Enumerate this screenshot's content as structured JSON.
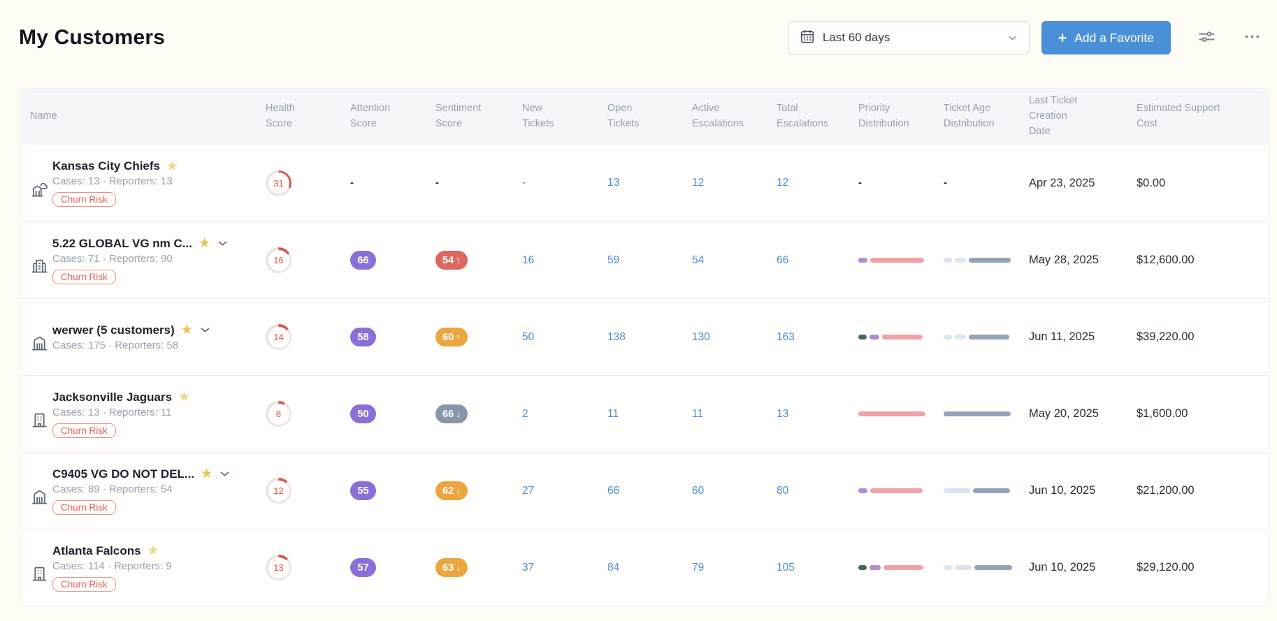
{
  "page": {
    "title": "My Customers"
  },
  "toolbar": {
    "date_filter": {
      "value": "Last 60 days",
      "icon": "calendar-icon"
    },
    "add_favorite": {
      "plus": "+",
      "label": "Add a Favorite"
    },
    "settings_icon": "sliders-icon",
    "more_icon": "ellipsis-icon"
  },
  "colors": {
    "accent_blue": "#4a90d9",
    "link_blue": "#4a8ed6",
    "attention_pill": "#8a6fd8",
    "sentiment_red": "#dd685f",
    "sentiment_amber": "#eba640",
    "sentiment_gray": "#8796a8",
    "health_red": "#d9534f",
    "ring_track": "#e9e6e2",
    "churn_red": "#e0635e",
    "dist_teal": "#3f6a5d",
    "dist_purple": "#b28ccd",
    "dist_pink": "#f0a2a6",
    "dist_blue_light": "#dbe5f1",
    "dist_slate": "#95a3b9"
  },
  "table": {
    "columns": [
      "Name",
      "Health Score",
      "Attention Score",
      "Sentiment Score",
      "New Tickets",
      "Open Tickets",
      "Active Escalations",
      "Total Escalations",
      "Priority Distribution",
      "Ticket Age Distribution",
      "Last Ticket Creation Date",
      "Estimated Support Cost"
    ],
    "rows": [
      {
        "name": "Kansas City Chiefs",
        "icon": "building-cloud-icon",
        "starred": true,
        "star_tone": "light",
        "expandable": false,
        "meta": "Cases: 13 · Reporters: 13",
        "badge": "Churn Risk",
        "health": 31,
        "attention": null,
        "sentiment": null,
        "new_tickets": "-",
        "open_tickets": "13",
        "active_escalations": "12",
        "total_escalations": "12",
        "priority_distribution": null,
        "ticket_age_distribution": null,
        "last_ticket_date": "Apr 23, 2025",
        "support_cost": "$0.00"
      },
      {
        "name": "5.22 GLOBAL VG nm C...",
        "icon": "buildings-icon",
        "starred": true,
        "star_tone": "solid",
        "expandable": true,
        "meta": "Cases: 71 · Reporters: 90",
        "badge": "Churn Risk",
        "health": 16,
        "attention": "66",
        "sentiment": {
          "value": "54",
          "trend": "up",
          "tone": "red"
        },
        "new_tickets": "16",
        "open_tickets": "59",
        "active_escalations": "54",
        "total_escalations": "66",
        "priority_distribution": [
          {
            "color": "dist_purple",
            "pct": 14
          },
          {
            "color": "dist_pink",
            "pct": 80
          }
        ],
        "ticket_age_distribution": [
          {
            "color": "dist_blue_light",
            "pct": 13
          },
          {
            "color": "dist_blue_light",
            "pct": 16
          },
          {
            "color": "dist_slate",
            "pct": 63
          }
        ],
        "last_ticket_date": "May 28, 2025",
        "support_cost": "$12,600.00"
      },
      {
        "name": "werwer (5 customers)",
        "icon": "bank-icon",
        "starred": true,
        "star_tone": "solid",
        "expandable": true,
        "meta": "Cases: 175 · Reporters: 58",
        "badge": null,
        "health": 14,
        "attention": "58",
        "sentiment": {
          "value": "60",
          "trend": "up",
          "tone": "amber"
        },
        "new_tickets": "50",
        "open_tickets": "138",
        "active_escalations": "130",
        "total_escalations": "163",
        "priority_distribution": [
          {
            "color": "dist_teal",
            "pct": 13
          },
          {
            "color": "dist_purple",
            "pct": 14
          },
          {
            "color": "dist_pink",
            "pct": 60
          }
        ],
        "ticket_age_distribution": [
          {
            "color": "dist_blue_light",
            "pct": 12
          },
          {
            "color": "dist_blue_light",
            "pct": 17
          },
          {
            "color": "dist_slate",
            "pct": 61
          }
        ],
        "last_ticket_date": "Jun 11, 2025",
        "support_cost": "$39,220.00"
      },
      {
        "name": "Jacksonville Jaguars",
        "icon": "building-icon",
        "starred": true,
        "star_tone": "light",
        "expandable": false,
        "meta": "Cases: 13 · Reporters: 11",
        "badge": "Churn Risk",
        "health": 8,
        "attention": "50",
        "sentiment": {
          "value": "66",
          "trend": "down",
          "tone": "gray"
        },
        "new_tickets": "2",
        "open_tickets": "11",
        "active_escalations": "11",
        "total_escalations": "13",
        "priority_distribution": [
          {
            "color": "dist_pink",
            "pct": 100
          }
        ],
        "ticket_age_distribution": [
          {
            "color": "dist_slate",
            "pct": 100
          }
        ],
        "last_ticket_date": "May 20, 2025",
        "support_cost": "$1,600.00"
      },
      {
        "name": "C9405 VG DO NOT DEL...",
        "icon": "bank-icon",
        "starred": true,
        "star_tone": "solid",
        "expandable": true,
        "meta": "Cases: 89 · Reporters: 54",
        "badge": "Churn Risk",
        "health": 12,
        "attention": "55",
        "sentiment": {
          "value": "62",
          "trend": "down",
          "tone": "amber"
        },
        "new_tickets": "27",
        "open_tickets": "66",
        "active_escalations": "60",
        "total_escalations": "80",
        "priority_distribution": [
          {
            "color": "dist_purple",
            "pct": 14
          },
          {
            "color": "dist_pink",
            "pct": 78
          }
        ],
        "ticket_age_distribution": [
          {
            "color": "dist_blue_light",
            "pct": 40
          },
          {
            "color": "dist_slate",
            "pct": 55
          }
        ],
        "last_ticket_date": "Jun 10, 2025",
        "support_cost": "$21,200.00"
      },
      {
        "name": "Atlanta Falcons",
        "icon": "building-icon",
        "starred": true,
        "star_tone": "light",
        "expandable": false,
        "meta": "Cases: 114 · Reporters: 9",
        "badge": "Churn Risk",
        "health": 13,
        "attention": "57",
        "sentiment": {
          "value": "63",
          "trend": "down",
          "tone": "amber"
        },
        "new_tickets": "37",
        "open_tickets": "84",
        "active_escalations": "79",
        "total_escalations": "105",
        "priority_distribution": [
          {
            "color": "dist_teal",
            "pct": 13
          },
          {
            "color": "dist_purple",
            "pct": 16
          },
          {
            "color": "dist_pink",
            "pct": 60
          }
        ],
        "ticket_age_distribution": [
          {
            "color": "dist_blue_light",
            "pct": 13
          },
          {
            "color": "dist_blue_light",
            "pct": 25
          },
          {
            "color": "dist_slate",
            "pct": 56
          }
        ],
        "last_ticket_date": "Jun 10, 2025",
        "support_cost": "$29,120.00"
      }
    ]
  }
}
